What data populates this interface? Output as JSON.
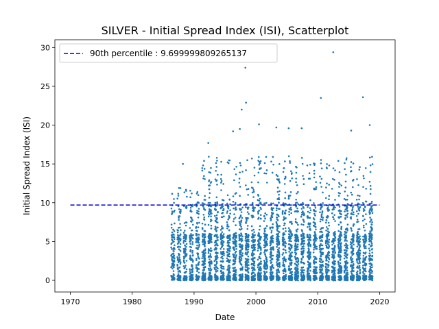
{
  "chart_data": {
    "type": "scatter",
    "title": "SILVER - Initial Spread Index (ISI), Scatterplot",
    "xlabel": "Date",
    "ylabel": "Initial Spread Index (ISI)",
    "xlim": [
      1967.5,
      2022.5
    ],
    "ylim": [
      -1.5,
      31.0
    ],
    "x_ticks": [
      1970,
      1980,
      1990,
      2000,
      2010,
      2020
    ],
    "y_ticks": [
      0,
      5,
      10,
      15,
      20,
      25,
      30
    ],
    "grid": false,
    "legend": {
      "placement": "top-left",
      "entries": [
        "90th percentile : 9.699999809265137"
      ]
    },
    "reference_line": {
      "name": "90th percentile : 9.699999809265137",
      "y": 9.699999809265137,
      "x_range": [
        1970,
        2020
      ],
      "style": "dashed",
      "color": "#0000cc"
    },
    "series": [
      {
        "color": "#1f77b4",
        "marker_color": "#1f77b4",
        "season_years": [
          1986,
          1987,
          1988,
          1989,
          1990,
          1991,
          1992,
          1993,
          1994,
          1995,
          1996,
          1997,
          1998,
          1999,
          2000,
          2001,
          2002,
          2003,
          2004,
          2005,
          2006,
          2007,
          2008,
          2009,
          2010,
          2011,
          2012,
          2013,
          2014,
          2015,
          2016,
          2017,
          2018
        ],
        "outliers": [
          {
            "x": 1988.2,
            "y": 15.0
          },
          {
            "x": 1992.3,
            "y": 17.7
          },
          {
            "x": 1996.3,
            "y": 19.2
          },
          {
            "x": 1997.4,
            "y": 19.5
          },
          {
            "x": 1997.7,
            "y": 22.0
          },
          {
            "x": 1998.3,
            "y": 27.4
          },
          {
            "x": 1998.4,
            "y": 22.9
          },
          {
            "x": 2000.5,
            "y": 20.1
          },
          {
            "x": 2003.3,
            "y": 19.7
          },
          {
            "x": 2005.3,
            "y": 19.6
          },
          {
            "x": 2007.4,
            "y": 19.6
          },
          {
            "x": 2010.5,
            "y": 23.5
          },
          {
            "x": 2012.5,
            "y": 29.4
          },
          {
            "x": 2015.4,
            "y": 19.3
          },
          {
            "x": 2017.3,
            "y": 23.6
          },
          {
            "x": 2018.4,
            "y": 20.0
          }
        ]
      }
    ]
  }
}
